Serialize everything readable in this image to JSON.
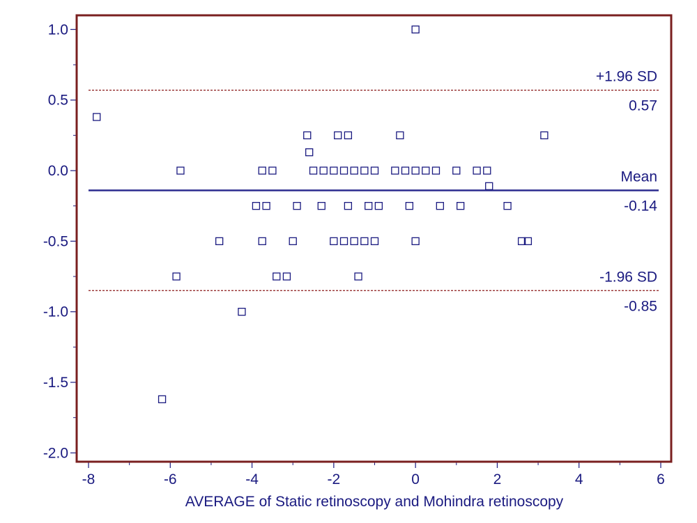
{
  "chart_data": {
    "type": "scatter",
    "title": "",
    "xlabel": "AVERAGE of Static retinoscopy  and Mohindra retinoscopy",
    "ylabel": "",
    "xlim": [
      -8.3,
      6.3
    ],
    "ylim": [
      -2.1,
      1.1
    ],
    "x_ticks": [
      -8,
      -6,
      -4,
      -2,
      0,
      2,
      4,
      6
    ],
    "x_tick_labels": [
      "-8",
      "-6",
      "-4",
      "-2",
      "0",
      "2",
      "4",
      "6"
    ],
    "x_minor_ticks": [
      -7,
      -5,
      -3,
      -1,
      1,
      3,
      5
    ],
    "y_ticks": [
      1.0,
      0.5,
      0.0,
      -0.5,
      -1.0,
      -1.5,
      -2.0
    ],
    "y_tick_labels": [
      "1.0",
      "0.5",
      "0.0",
      "-0.5",
      "-1.0",
      "-1.5",
      "-2.0"
    ],
    "y_minor_ticks": [
      0.75,
      0.25,
      -0.25,
      -0.75,
      -1.25,
      -1.75
    ],
    "grid": false,
    "reference_lines": [
      {
        "name": "+1.96 SD",
        "value_label": "0.57",
        "y": 0.57,
        "style": "dashed",
        "color": "#8b1a1a"
      },
      {
        "name": "Mean",
        "value_label": "-0.14",
        "y": -0.14,
        "style": "solid",
        "color": "#2b2b8f"
      },
      {
        "name": "-1.96 SD",
        "value_label": "-0.85",
        "y": -0.85,
        "style": "dashed",
        "color": "#8b1a1a"
      }
    ],
    "colors": {
      "frame": "#7a1f1f",
      "points": "#1a1a80",
      "text": "#1a1a80"
    },
    "points": [
      {
        "x": 0.0,
        "y": 1.0
      },
      {
        "x": -7.8,
        "y": 0.38
      },
      {
        "x": -2.65,
        "y": 0.25
      },
      {
        "x": -1.9,
        "y": 0.25
      },
      {
        "x": -1.65,
        "y": 0.25
      },
      {
        "x": -0.38,
        "y": 0.25
      },
      {
        "x": 3.15,
        "y": 0.25
      },
      {
        "x": -2.6,
        "y": 0.13
      },
      {
        "x": -5.75,
        "y": 0.0
      },
      {
        "x": -3.75,
        "y": 0.0
      },
      {
        "x": -3.5,
        "y": 0.0
      },
      {
        "x": -2.5,
        "y": 0.0
      },
      {
        "x": -2.25,
        "y": 0.0
      },
      {
        "x": -2.0,
        "y": 0.0
      },
      {
        "x": -1.75,
        "y": 0.0
      },
      {
        "x": -1.5,
        "y": 0.0
      },
      {
        "x": -1.25,
        "y": 0.0
      },
      {
        "x": -1.0,
        "y": 0.0
      },
      {
        "x": -0.5,
        "y": 0.0
      },
      {
        "x": -0.25,
        "y": 0.0
      },
      {
        "x": 0.0,
        "y": 0.0
      },
      {
        "x": 0.25,
        "y": 0.0
      },
      {
        "x": 0.5,
        "y": 0.0
      },
      {
        "x": 1.0,
        "y": 0.0
      },
      {
        "x": 1.5,
        "y": 0.0
      },
      {
        "x": 1.75,
        "y": 0.0
      },
      {
        "x": 1.8,
        "y": -0.11
      },
      {
        "x": -3.9,
        "y": -0.25
      },
      {
        "x": -3.65,
        "y": -0.25
      },
      {
        "x": -2.9,
        "y": -0.25
      },
      {
        "x": -2.3,
        "y": -0.25
      },
      {
        "x": -1.65,
        "y": -0.25
      },
      {
        "x": -1.15,
        "y": -0.25
      },
      {
        "x": -0.9,
        "y": -0.25
      },
      {
        "x": -0.15,
        "y": -0.25
      },
      {
        "x": 0.6,
        "y": -0.25
      },
      {
        "x": 1.1,
        "y": -0.25
      },
      {
        "x": 2.25,
        "y": -0.25
      },
      {
        "x": -4.8,
        "y": -0.5
      },
      {
        "x": -3.75,
        "y": -0.5
      },
      {
        "x": -3.0,
        "y": -0.5
      },
      {
        "x": -2.0,
        "y": -0.5
      },
      {
        "x": -1.75,
        "y": -0.5
      },
      {
        "x": -1.5,
        "y": -0.5
      },
      {
        "x": -1.25,
        "y": -0.5
      },
      {
        "x": -1.0,
        "y": -0.5
      },
      {
        "x": 0.0,
        "y": -0.5
      },
      {
        "x": 2.6,
        "y": -0.5
      },
      {
        "x": 2.75,
        "y": -0.5
      },
      {
        "x": -5.85,
        "y": -0.75
      },
      {
        "x": -3.4,
        "y": -0.75
      },
      {
        "x": -3.15,
        "y": -0.75
      },
      {
        "x": -1.4,
        "y": -0.75
      },
      {
        "x": -4.25,
        "y": -1.0
      },
      {
        "x": -6.2,
        "y": -1.62
      }
    ]
  }
}
